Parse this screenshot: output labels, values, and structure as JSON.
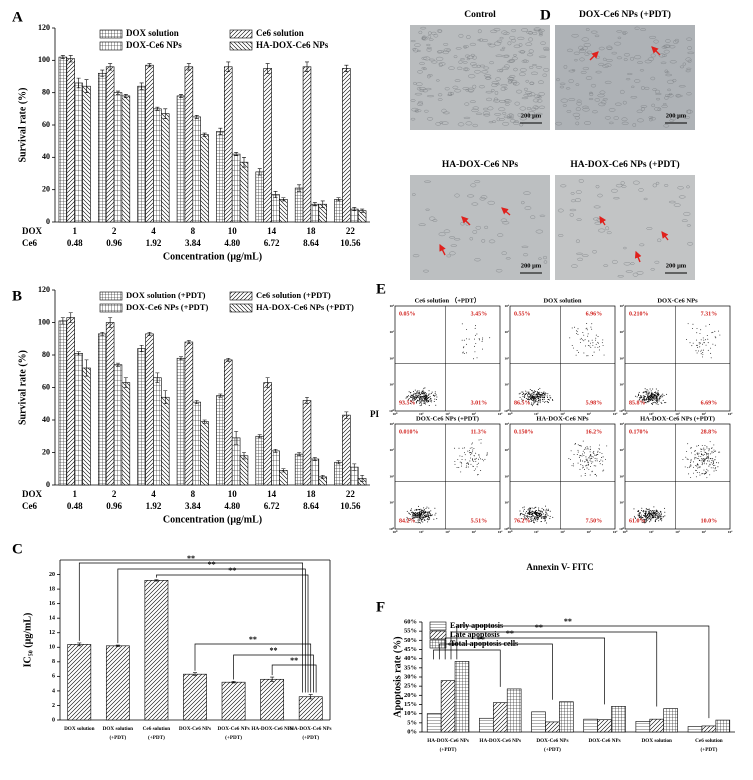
{
  "chart_data": [
    {
      "panel": "A",
      "type": "bar",
      "ylabel": "Survival rate (%)",
      "xlabel": "Concentration  (μg/mL)",
      "category_row_labels": [
        "DOX",
        "Ce6"
      ],
      "categories": [
        "1",
        "2",
        "4",
        "8",
        "10",
        "14",
        "18",
        "22"
      ],
      "categories2": [
        "0.48",
        "0.96",
        "1.92",
        "3.84",
        "4.80",
        "6.72",
        "8.64",
        "10.56"
      ],
      "ylim": [
        0,
        120
      ],
      "yticks": [
        0,
        20,
        40,
        60,
        80,
        100,
        120
      ],
      "legend": "top",
      "series": [
        {
          "name": "DOX solution",
          "color": "#000000",
          "pattern": "grid",
          "values": [
            102,
            92,
            84,
            78,
            56,
            31,
            21,
            14
          ],
          "errors": [
            1,
            2,
            2,
            1,
            2,
            2,
            2,
            1
          ]
        },
        {
          "name": "Ce6 solution",
          "color": "#000000",
          "pattern": "diagonal",
          "values": [
            101,
            96,
            97,
            96,
            96,
            95,
            96,
            95
          ],
          "errors": [
            2,
            2,
            1,
            2,
            3,
            3,
            3,
            2
          ]
        },
        {
          "name": "DOX-Ce6 NPs",
          "color": "#000000",
          "pattern": "vgrid",
          "values": [
            86,
            80,
            70,
            65,
            42,
            17,
            11,
            8
          ],
          "errors": [
            3,
            1,
            1,
            1,
            1,
            2,
            1,
            1
          ]
        },
        {
          "name": "HA-DOX-Ce6 NPs",
          "color": "#000000",
          "pattern": "backdiag",
          "values": [
            84,
            78,
            67,
            54,
            37,
            14,
            11,
            7
          ],
          "errors": [
            4,
            1,
            3,
            1,
            3,
            1,
            2,
            1
          ]
        }
      ]
    },
    {
      "panel": "B",
      "type": "bar",
      "ylabel": "Survival rate (%)",
      "xlabel": "Concentration  (μg/mL)",
      "category_row_labels": [
        "DOX",
        "Ce6"
      ],
      "categories": [
        "1",
        "2",
        "4",
        "8",
        "10",
        "14",
        "18",
        "22"
      ],
      "categories2": [
        "0.48",
        "0.96",
        "1.92",
        "3.84",
        "4.80",
        "6.72",
        "8.64",
        "10.56"
      ],
      "ylim": [
        0,
        120
      ],
      "yticks": [
        0,
        20,
        40,
        60,
        80,
        100,
        120
      ],
      "legend": "top",
      "series": [
        {
          "name": "DOX solution (+PDT)",
          "color": "#000000",
          "pattern": "grid",
          "values": [
            101,
            93,
            84,
            78,
            55,
            30,
            19,
            14
          ],
          "errors": [
            2,
            1,
            2,
            1,
            1,
            1,
            1,
            1
          ]
        },
        {
          "name": "Ce6 solution (+PDT)",
          "color": "#000000",
          "pattern": "diagonal",
          "values": [
            103,
            100,
            93,
            88,
            77,
            63,
            52,
            43
          ],
          "errors": [
            3,
            3,
            1,
            1,
            1,
            3,
            2,
            2
          ]
        },
        {
          "name": "DOX-Ce6 NPs (+PDT)",
          "color": "#000000",
          "pattern": "vgrid",
          "values": [
            81,
            74,
            66,
            51,
            29,
            21,
            16,
            11
          ],
          "errors": [
            1,
            1,
            3,
            1,
            4,
            1,
            1,
            2
          ]
        },
        {
          "name": "HA-DOX-Ce6 NPs (+PDT)",
          "color": "#000000",
          "pattern": "backdiag",
          "values": [
            72,
            63,
            54,
            39,
            18,
            9,
            5,
            4
          ],
          "errors": [
            5,
            3,
            4,
            1,
            2,
            1,
            1,
            2
          ]
        }
      ]
    },
    {
      "panel": "C",
      "type": "bar",
      "ylabel": "IC₅₀ (μg/mL)",
      "categories": [
        [
          "DOX solution"
        ],
        [
          "DOX solution",
          "(+PDT)"
        ],
        [
          "Ce6 solution",
          "(+PDT)"
        ],
        [
          "DOX-Ce6 NPs"
        ],
        [
          "DOX-Ce6 NPs",
          "(+PDT)"
        ],
        [
          "HA-DOX-Ce6 NPs"
        ],
        [
          "HA-DOX-Ce6 NPs",
          "(+PDT)"
        ]
      ],
      "values": [
        10.4,
        10.2,
        19.2,
        6.3,
        5.2,
        5.6,
        3.2
      ],
      "errors": [
        0.2,
        0.1,
        0.1,
        0.2,
        0.1,
        0.3,
        0.3
      ],
      "color": "#000000",
      "pattern": "diagonal",
      "ylim": [
        0,
        22
      ],
      "yticks": [
        0,
        2,
        4,
        6,
        8,
        10,
        12,
        14,
        16,
        18,
        20
      ],
      "annotations": [
        "**",
        "**",
        "**",
        "**",
        "**",
        "**"
      ]
    },
    {
      "panel": "F",
      "type": "bar",
      "ylabel": "Apoptosis rate (%)",
      "categories": [
        [
          "HA-DOX-Ce6 NPs",
          "(+PDT)"
        ],
        [
          "HA-DOX-Ce6 NPs"
        ],
        [
          "DOX-Ce6 NPs",
          "(+PDT)"
        ],
        [
          "DOX-Ce6 NPs"
        ],
        [
          "DOX solution"
        ],
        [
          "Ce6 solution",
          "(+PDT)"
        ]
      ],
      "ylim": [
        0,
        60
      ],
      "yticks": [
        {
          "value": 0,
          "label": "0%"
        },
        {
          "value": 5,
          "label": "5%"
        },
        {
          "value": 10,
          "label": "10%"
        },
        {
          "value": 15,
          "label": "15%"
        },
        {
          "value": 20,
          "label": "20%"
        },
        {
          "value": 25,
          "label": "25%"
        },
        {
          "value": 30,
          "label": "30%"
        },
        {
          "value": 35,
          "label": "35%"
        },
        {
          "value": 40,
          "label": "40%"
        },
        {
          "value": 45,
          "label": "45%"
        },
        {
          "value": 50,
          "label": "50%"
        },
        {
          "value": 55,
          "label": "55%"
        },
        {
          "value": 60,
          "label": "60%"
        }
      ],
      "legend": "top-left",
      "series": [
        {
          "name": "Early apoptosis",
          "color": "#000000",
          "pattern": "hline",
          "values": [
            10,
            7.5,
            11,
            7,
            5.8,
            3
          ]
        },
        {
          "name": "Late apoptosis",
          "color": "#000000",
          "pattern": "diagonal",
          "values": [
            28,
            16,
            5.5,
            6.7,
            7,
            3.3
          ]
        },
        {
          "name": "Total apoptosis cells",
          "color": "#000000",
          "pattern": "grid",
          "values": [
            38.5,
            23.5,
            16.5,
            14,
            12.8,
            6.5
          ]
        }
      ],
      "annotations": [
        "**",
        "**",
        "**",
        "**",
        "**"
      ]
    }
  ],
  "micrographs": {
    "panel": "D",
    "images": [
      {
        "title": "Control",
        "scale": "200 μm"
      },
      {
        "title": "DOX-Ce6 NPs (+PDT)",
        "scale": "200 μm"
      },
      {
        "title": "HA-DOX-Ce6 NPs",
        "scale": "200 μm"
      },
      {
        "title": "HA-DOX-Ce6 NPs (+PDT)",
        "scale": "200 μm"
      }
    ]
  },
  "flow_cytometry": {
    "panel": "E",
    "ylabel": "PI",
    "xlabel": "Annexin V- FITC",
    "axis_ticks": [
      "10⁰",
      "10¹",
      "10²",
      "10³",
      "10⁴"
    ],
    "plots": [
      {
        "title": "Ce6 solution （+PDT）",
        "quadrants": [
          "0.05%",
          "3.45%",
          "93.5%",
          "3.01%"
        ]
      },
      {
        "title": "DOX solution",
        "quadrants": [
          "0.55%",
          "6.96%",
          "86.5%",
          "5.98%"
        ]
      },
      {
        "title": "DOX-Ce6 NPs",
        "quadrants": [
          "0.210%",
          "7.31%",
          "85.8%",
          "6.69%"
        ]
      },
      {
        "title": "DOX-Ce6  NPs (+PDT)",
        "quadrants": [
          "0.010%",
          "11.3%",
          "84.2%",
          "5.51%"
        ]
      },
      {
        "title": "HA-DOX-Ce6 NPs",
        "quadrants": [
          "0.150%",
          "16.2%",
          "76.2%",
          "7.50%"
        ]
      },
      {
        "title": "HA-DOX-Ce6  NPs (+PDT)",
        "quadrants": [
          "0.170%",
          "28.8%",
          "61.0%",
          "10.0%"
        ]
      }
    ]
  }
}
